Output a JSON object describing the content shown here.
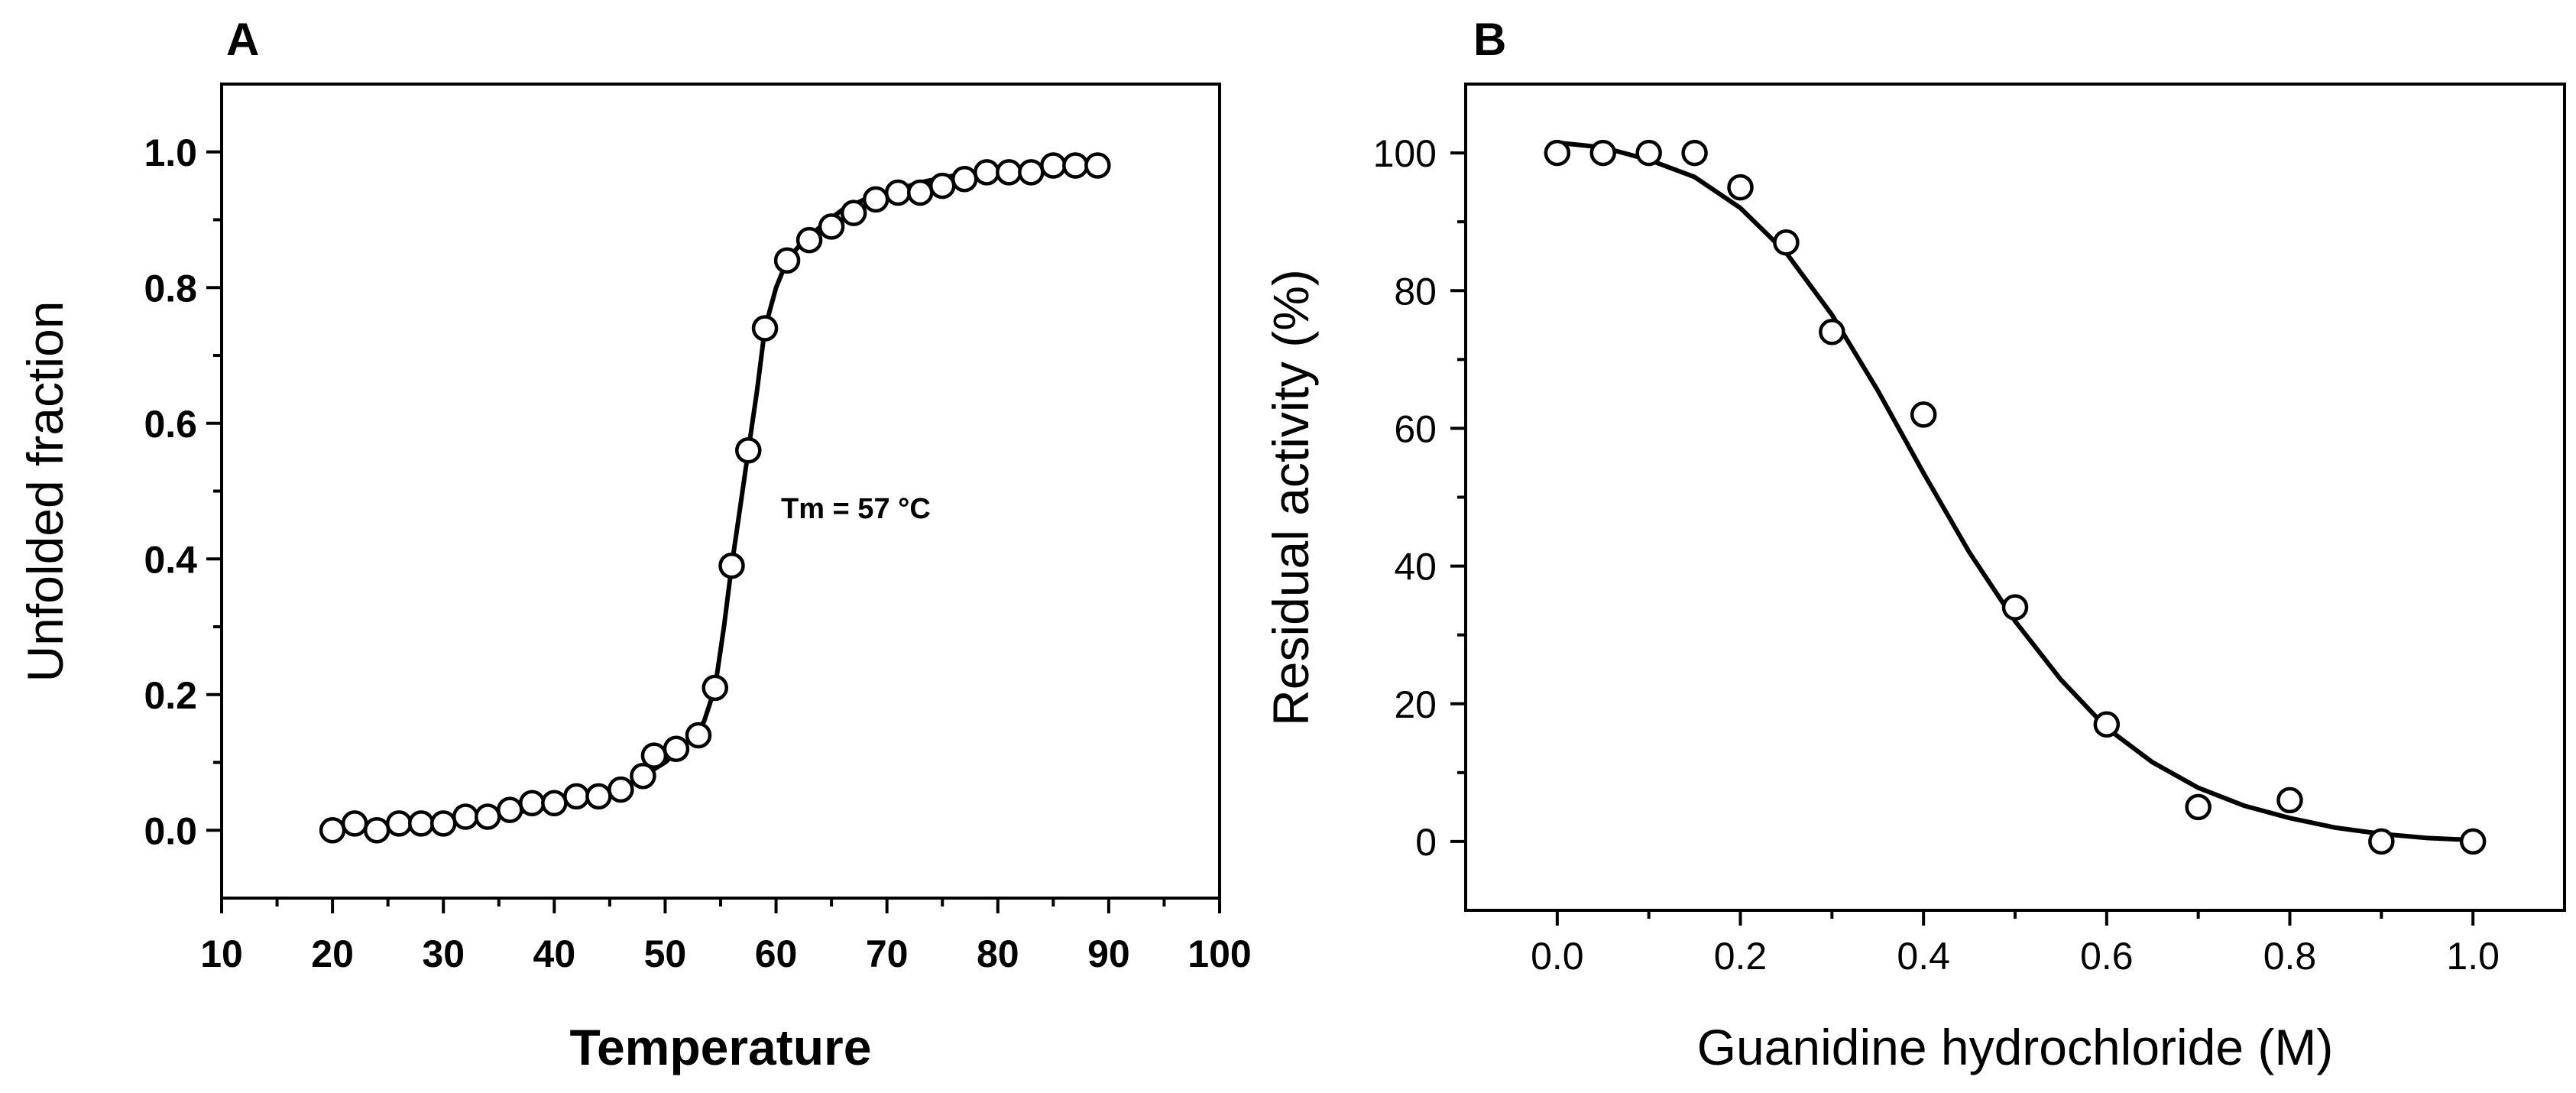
{
  "chart_data": [
    {
      "panel": "A",
      "type": "scatter",
      "xlabel": "Temperature",
      "ylabel": "Unfolded fraction",
      "xlim": [
        10,
        100
      ],
      "ylim": [
        -0.1,
        1.1
      ],
      "xticks": [
        10,
        20,
        30,
        40,
        50,
        60,
        70,
        80,
        90,
        100
      ],
      "xtick_labels": [
        "10",
        "20",
        "30",
        "40",
        "50",
        "60",
        "70",
        "80",
        "90",
        "100"
      ],
      "yticks": [
        0.0,
        0.2,
        0.4,
        0.6,
        0.8,
        1.0
      ],
      "ytick_labels": [
        "0.0",
        "0.2",
        "0.4",
        "0.6",
        "0.8",
        "1.0"
      ],
      "annotation": "Tm = 57 °C",
      "series": [
        {
          "name": "data",
          "marker": "open-circle",
          "x": [
            20,
            22,
            24,
            26,
            28,
            30,
            32,
            34,
            36,
            38,
            40,
            42,
            44,
            46,
            48,
            49,
            51,
            53,
            54.5,
            56,
            57.5,
            59,
            61,
            63,
            65,
            67,
            69,
            71,
            73,
            75,
            77,
            79,
            81,
            83,
            85,
            87,
            89
          ],
          "y": [
            0.0,
            0.01,
            0.0,
            0.01,
            0.01,
            0.01,
            0.02,
            0.02,
            0.03,
            0.04,
            0.04,
            0.05,
            0.05,
            0.06,
            0.08,
            0.11,
            0.12,
            0.14,
            0.21,
            0.39,
            0.56,
            0.74,
            0.84,
            0.87,
            0.89,
            0.91,
            0.93,
            0.94,
            0.94,
            0.95,
            0.96,
            0.97,
            0.97,
            0.97,
            0.98,
            0.98,
            0.98
          ]
        },
        {
          "name": "fit",
          "line": "solid",
          "x": [
            20,
            24,
            28,
            32,
            36,
            40,
            44,
            47,
            50,
            52,
            53.5,
            54.5,
            55.3,
            56,
            56.8,
            57.5,
            58.3,
            59,
            60,
            61,
            62,
            64,
            66,
            68,
            70,
            73,
            76,
            80,
            84,
            89
          ],
          "y": [
            0.0,
            0.005,
            0.01,
            0.015,
            0.025,
            0.035,
            0.05,
            0.07,
            0.1,
            0.13,
            0.16,
            0.21,
            0.3,
            0.39,
            0.48,
            0.56,
            0.65,
            0.74,
            0.8,
            0.84,
            0.86,
            0.89,
            0.915,
            0.93,
            0.94,
            0.955,
            0.965,
            0.972,
            0.977,
            0.98
          ]
        }
      ]
    },
    {
      "panel": "B",
      "type": "scatter",
      "xlabel": "Guanidine hydrochloride (M)",
      "ylabel": "Residual activity (%)",
      "xlim": [
        -0.1,
        1.1
      ],
      "ylim": [
        -10,
        110
      ],
      "xticks": [
        0.0,
        0.2,
        0.4,
        0.6,
        0.8,
        1.0
      ],
      "xtick_labels": [
        "0.0",
        "0.2",
        "0.4",
        "0.6",
        "0.8",
        "1.0"
      ],
      "yticks": [
        0,
        20,
        40,
        60,
        80,
        100
      ],
      "ytick_labels": [
        "0",
        "20",
        "40",
        "60",
        "80",
        "100"
      ],
      "series": [
        {
          "name": "data",
          "marker": "open-circle",
          "x": [
            0.0,
            0.05,
            0.1,
            0.15,
            0.2,
            0.25,
            0.3,
            0.4,
            0.5,
            0.6,
            0.7,
            0.8,
            0.9,
            1.0
          ],
          "y": [
            100,
            100,
            100,
            100,
            95,
            87,
            74,
            62,
            34,
            17,
            5,
            6,
            0,
            0
          ]
        },
        {
          "name": "fit",
          "line": "solid",
          "x": [
            0.0,
            0.05,
            0.1,
            0.15,
            0.2,
            0.25,
            0.3,
            0.35,
            0.4,
            0.45,
            0.5,
            0.55,
            0.6,
            0.65,
            0.7,
            0.75,
            0.8,
            0.85,
            0.9,
            0.95,
            1.0
          ],
          "y": [
            101.5,
            100.8,
            99.0,
            96.5,
            92.0,
            85.5,
            76.5,
            65.5,
            53.5,
            42.0,
            32.0,
            23.5,
            16.5,
            11.5,
            7.8,
            5.2,
            3.4,
            2.0,
            1.1,
            0.5,
            0.2
          ]
        }
      ]
    }
  ]
}
